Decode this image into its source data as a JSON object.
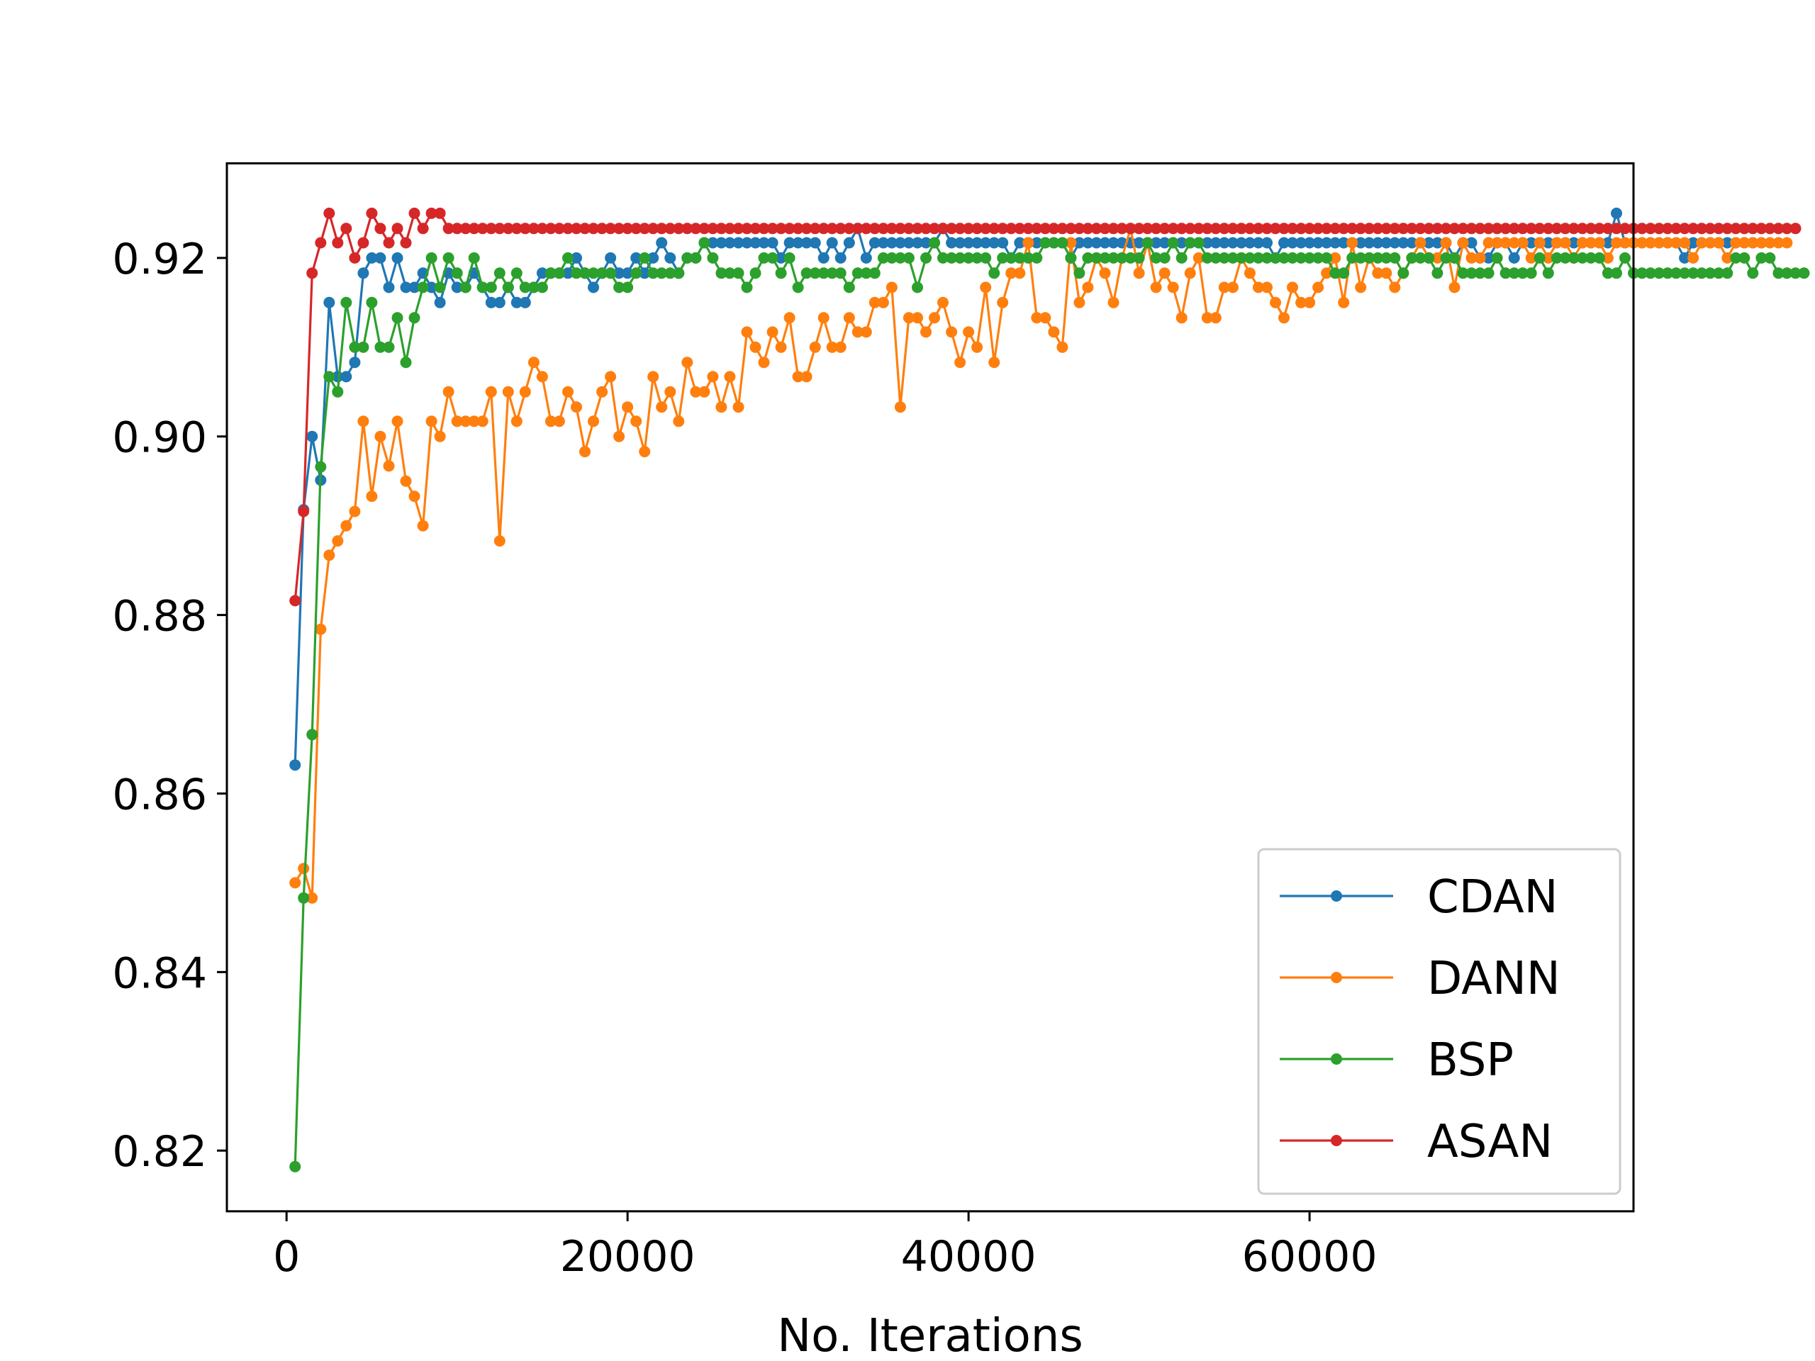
{
  "chart_data": {
    "type": "line",
    "title": "",
    "xlabel": "No. Iterations",
    "ylabel": "",
    "xlim": [
      -3500,
      79000
    ],
    "ylim": [
      0.8132,
      0.9306
    ],
    "xticks": [
      0,
      20000,
      40000,
      60000
    ],
    "xtick_labels": [
      "0",
      "20000",
      "40000",
      "60000"
    ],
    "yticks": [
      0.82,
      0.84,
      0.86,
      0.88,
      0.9,
      0.92
    ],
    "ytick_labels": [
      "0.82",
      "0.84",
      "0.86",
      "0.88",
      "0.90",
      "0.92"
    ],
    "grid": false,
    "legend_position": "lower-right",
    "marker": "circle",
    "x_start": 500,
    "x_step": 500,
    "series": [
      {
        "name": "CDAN",
        "color": "#1f77b4",
        "values": [
          0.8632,
          0.8918,
          0.9,
          0.8951,
          0.915,
          0.9067,
          0.9067,
          0.9083,
          0.9183,
          0.92,
          0.92,
          0.9167,
          0.92,
          0.9167,
          0.9167,
          0.9183,
          0.9167,
          0.915,
          0.9183,
          0.9167,
          0.9167,
          0.9183,
          0.9167,
          0.915,
          0.915,
          0.9167,
          0.915,
          0.915,
          0.9167,
          0.9183,
          0.9183,
          0.9183,
          0.9183,
          0.92,
          0.9183,
          0.9167,
          0.9183,
          0.92,
          0.9183,
          0.9183,
          0.92,
          0.9183,
          0.92,
          0.9217,
          0.92,
          0.9183,
          0.92,
          0.92,
          0.9217,
          0.9217,
          0.9217,
          0.9217,
          0.9217,
          0.9217,
          0.9217,
          0.9217,
          0.9217,
          0.92,
          0.9217,
          0.9217,
          0.9217,
          0.9217,
          0.92,
          0.9217,
          0.92,
          0.9217,
          0.9233,
          0.92,
          0.9217,
          0.9217,
          0.9217,
          0.9217,
          0.9217,
          0.9217,
          0.9217,
          0.9217,
          0.9233,
          0.9217,
          0.9217,
          0.9217,
          0.9217,
          0.9217,
          0.9217,
          0.9217,
          0.92,
          0.9217,
          0.9217,
          0.9217,
          0.9217,
          0.9217,
          0.9217,
          0.92,
          0.9217,
          0.9217,
          0.9217,
          0.9217,
          0.9217,
          0.9217,
          0.9217,
          0.9217,
          0.9217,
          0.9217,
          0.9217,
          0.9217,
          0.9217,
          0.9217,
          0.9217,
          0.9217,
          0.9217,
          0.9217,
          0.9217,
          0.9217,
          0.9217,
          0.9217,
          0.9217,
          0.92,
          0.9217,
          0.9217,
          0.9217,
          0.9217,
          0.9217,
          0.9217,
          0.9217,
          0.9217,
          0.9217,
          0.9217,
          0.9217,
          0.9217,
          0.9217,
          0.9217,
          0.9217,
          0.9217,
          0.9217,
          0.9217,
          0.9217,
          0.9217,
          0.92,
          0.9217,
          0.9217,
          0.92,
          0.92,
          0.9217,
          0.9217,
          0.92,
          0.9217,
          0.9217,
          0.9217,
          0.9217,
          0.9217,
          0.9217,
          0.9217,
          0.9217,
          0.9217,
          0.9217,
          0.9217,
          0.925,
          0.9217,
          0.9217,
          0.9217,
          0.9217,
          0.9217,
          0.9217,
          0.9217,
          0.92,
          0.9217,
          0.9217,
          0.9217,
          0.9217,
          0.9217,
          0.9217,
          0.9217,
          0.9217,
          0.9217
        ]
      },
      {
        "name": "DANN",
        "color": "#ff7f0e",
        "values": [
          0.85,
          0.8516,
          0.8483,
          0.8784,
          0.8867,
          0.8883,
          0.89,
          0.8916,
          0.9017,
          0.8933,
          0.9,
          0.8967,
          0.9017,
          0.895,
          0.8933,
          0.89,
          0.9017,
          0.9,
          0.905,
          0.9017,
          0.9017,
          0.9017,
          0.9017,
          0.905,
          0.8883,
          0.905,
          0.9017,
          0.905,
          0.9083,
          0.9067,
          0.9017,
          0.9017,
          0.905,
          0.9033,
          0.8983,
          0.9017,
          0.905,
          0.9067,
          0.9,
          0.9033,
          0.9017,
          0.8983,
          0.9067,
          0.9033,
          0.905,
          0.9017,
          0.9083,
          0.905,
          0.905,
          0.9067,
          0.9033,
          0.9067,
          0.9033,
          0.9117,
          0.91,
          0.9083,
          0.9117,
          0.91,
          0.9133,
          0.9067,
          0.9067,
          0.91,
          0.9133,
          0.91,
          0.91,
          0.9133,
          0.9117,
          0.9117,
          0.915,
          0.915,
          0.9167,
          0.9033,
          0.9133,
          0.9133,
          0.9117,
          0.9133,
          0.915,
          0.9117,
          0.9083,
          0.9117,
          0.91,
          0.9167,
          0.9083,
          0.915,
          0.9183,
          0.9183,
          0.9217,
          0.9133,
          0.9133,
          0.9117,
          0.91,
          0.9217,
          0.915,
          0.9167,
          0.92,
          0.9183,
          0.915,
          0.92,
          0.9233,
          0.9183,
          0.9217,
          0.9167,
          0.9183,
          0.9167,
          0.9133,
          0.9183,
          0.92,
          0.9133,
          0.9133,
          0.9167,
          0.9167,
          0.92,
          0.9183,
          0.9167,
          0.9167,
          0.915,
          0.9133,
          0.9167,
          0.915,
          0.915,
          0.9167,
          0.9183,
          0.92,
          0.915,
          0.9217,
          0.9167,
          0.92,
          0.9183,
          0.9183,
          0.9167,
          0.9183,
          0.92,
          0.9217,
          0.92,
          0.92,
          0.9217,
          0.9167,
          0.9217,
          0.92,
          0.92,
          0.9217,
          0.9217,
          0.9217,
          0.9217,
          0.9217,
          0.92,
          0.9217,
          0.92,
          0.9217,
          0.9217,
          0.92,
          0.9217,
          0.9217,
          0.9217,
          0.92,
          0.9217,
          0.9217,
          0.9217,
          0.9217,
          0.9217,
          0.9217,
          0.9217,
          0.9217,
          0.9217,
          0.92,
          0.9217,
          0.9217,
          0.9217,
          0.92,
          0.9217,
          0.9217,
          0.9217,
          0.9217,
          0.9217,
          0.9217,
          0.9217
        ]
      },
      {
        "name": "BSP",
        "color": "#2ca02c",
        "values": [
          0.8182,
          0.8483,
          0.8666,
          0.8966,
          0.9067,
          0.905,
          0.915,
          0.91,
          0.91,
          0.915,
          0.91,
          0.91,
          0.9133,
          0.9083,
          0.9133,
          0.9167,
          0.92,
          0.9167,
          0.92,
          0.9183,
          0.9167,
          0.92,
          0.9167,
          0.9167,
          0.9183,
          0.9167,
          0.9183,
          0.9167,
          0.9167,
          0.9167,
          0.9183,
          0.9183,
          0.92,
          0.9183,
          0.9183,
          0.9183,
          0.9183,
          0.9183,
          0.9167,
          0.9167,
          0.9183,
          0.92,
          0.9183,
          0.9183,
          0.9183,
          0.9183,
          0.92,
          0.92,
          0.9217,
          0.92,
          0.9183,
          0.9183,
          0.9183,
          0.9167,
          0.9183,
          0.92,
          0.92,
          0.9183,
          0.92,
          0.9167,
          0.9183,
          0.9183,
          0.9183,
          0.9183,
          0.9183,
          0.9167,
          0.9183,
          0.9183,
          0.9183,
          0.92,
          0.92,
          0.92,
          0.92,
          0.9167,
          0.92,
          0.9217,
          0.92,
          0.92,
          0.92,
          0.92,
          0.92,
          0.92,
          0.9183,
          0.92,
          0.92,
          0.92,
          0.92,
          0.92,
          0.9217,
          0.9217,
          0.9217,
          0.92,
          0.9183,
          0.92,
          0.92,
          0.92,
          0.92,
          0.92,
          0.92,
          0.92,
          0.9217,
          0.92,
          0.92,
          0.9217,
          0.92,
          0.9217,
          0.9217,
          0.92,
          0.92,
          0.92,
          0.92,
          0.92,
          0.92,
          0.92,
          0.92,
          0.92,
          0.92,
          0.92,
          0.92,
          0.92,
          0.92,
          0.92,
          0.9183,
          0.9183,
          0.92,
          0.92,
          0.92,
          0.92,
          0.92,
          0.92,
          0.9183,
          0.92,
          0.92,
          0.92,
          0.9183,
          0.92,
          0.92,
          0.9183,
          0.9183,
          0.9183,
          0.9183,
          0.92,
          0.9183,
          0.9183,
          0.9183,
          0.9183,
          0.92,
          0.9183,
          0.92,
          0.92,
          0.92,
          0.92,
          0.92,
          0.92,
          0.9183,
          0.9183,
          0.92,
          0.9183,
          0.9183,
          0.9183,
          0.9183,
          0.9183,
          0.9183,
          0.9183,
          0.9183,
          0.9183,
          0.9183,
          0.9183,
          0.9183,
          0.92,
          0.92,
          0.9183,
          0.92,
          0.92,
          0.9183,
          0.9183,
          0.9183,
          0.9183
        ]
      },
      {
        "name": "ASAN",
        "color": "#d62728",
        "values": [
          0.8816,
          0.8916,
          0.9183,
          0.9217,
          0.925,
          0.9217,
          0.9233,
          0.92,
          0.9217,
          0.925,
          0.9233,
          0.9217,
          0.9233,
          0.9217,
          0.925,
          0.9233,
          0.925,
          0.925,
          0.9233,
          0.9233,
          0.9233,
          0.9233,
          0.9233,
          0.9233,
          0.9233,
          0.9233,
          0.9233,
          0.9233,
          0.9233,
          0.9233,
          0.9233,
          0.9233,
          0.9233,
          0.9233,
          0.9233,
          0.9233,
          0.9233,
          0.9233,
          0.9233,
          0.9233,
          0.9233,
          0.9233,
          0.9233,
          0.9233,
          0.9233,
          0.9233,
          0.9233,
          0.9233,
          0.9233,
          0.9233,
          0.9233,
          0.9233,
          0.9233,
          0.9233,
          0.9233,
          0.9233,
          0.9233,
          0.9233,
          0.9233,
          0.9233,
          0.9233,
          0.9233,
          0.9233,
          0.9233,
          0.9233,
          0.9233,
          0.9233,
          0.9233,
          0.9233,
          0.9233,
          0.9233,
          0.9233,
          0.9233,
          0.9233,
          0.9233,
          0.9233,
          0.9233,
          0.9233,
          0.9233,
          0.9233,
          0.9233,
          0.9233,
          0.9233,
          0.9233,
          0.9233,
          0.9233,
          0.9233,
          0.9233,
          0.9233,
          0.9233,
          0.9233,
          0.9233,
          0.9233,
          0.9233,
          0.9233,
          0.9233,
          0.9233,
          0.9233,
          0.9233,
          0.9233,
          0.9233,
          0.9233,
          0.9233,
          0.9233,
          0.9233,
          0.9233,
          0.9233,
          0.9233,
          0.9233,
          0.9233,
          0.9233,
          0.9233,
          0.9233,
          0.9233,
          0.9233,
          0.9233,
          0.9233,
          0.9233,
          0.9233,
          0.9233,
          0.9233,
          0.9233,
          0.9233,
          0.9233,
          0.9233,
          0.9233,
          0.9233,
          0.9233,
          0.9233,
          0.9233,
          0.9233,
          0.9233,
          0.9233,
          0.9233,
          0.9233,
          0.9233,
          0.9233,
          0.9233,
          0.9233,
          0.9233,
          0.9233,
          0.9233,
          0.9233,
          0.9233,
          0.9233,
          0.9233,
          0.9233,
          0.9233,
          0.9233,
          0.9233,
          0.9233,
          0.9233,
          0.9233,
          0.9233,
          0.9233,
          0.9233,
          0.9233,
          0.9233,
          0.9233,
          0.9233,
          0.9233,
          0.9233,
          0.9233,
          0.9233,
          0.9233,
          0.9233,
          0.9233,
          0.9233,
          0.9233,
          0.9233,
          0.9233,
          0.9233,
          0.9233,
          0.9233,
          0.9233,
          0.9233,
          0.9233
        ]
      }
    ]
  }
}
